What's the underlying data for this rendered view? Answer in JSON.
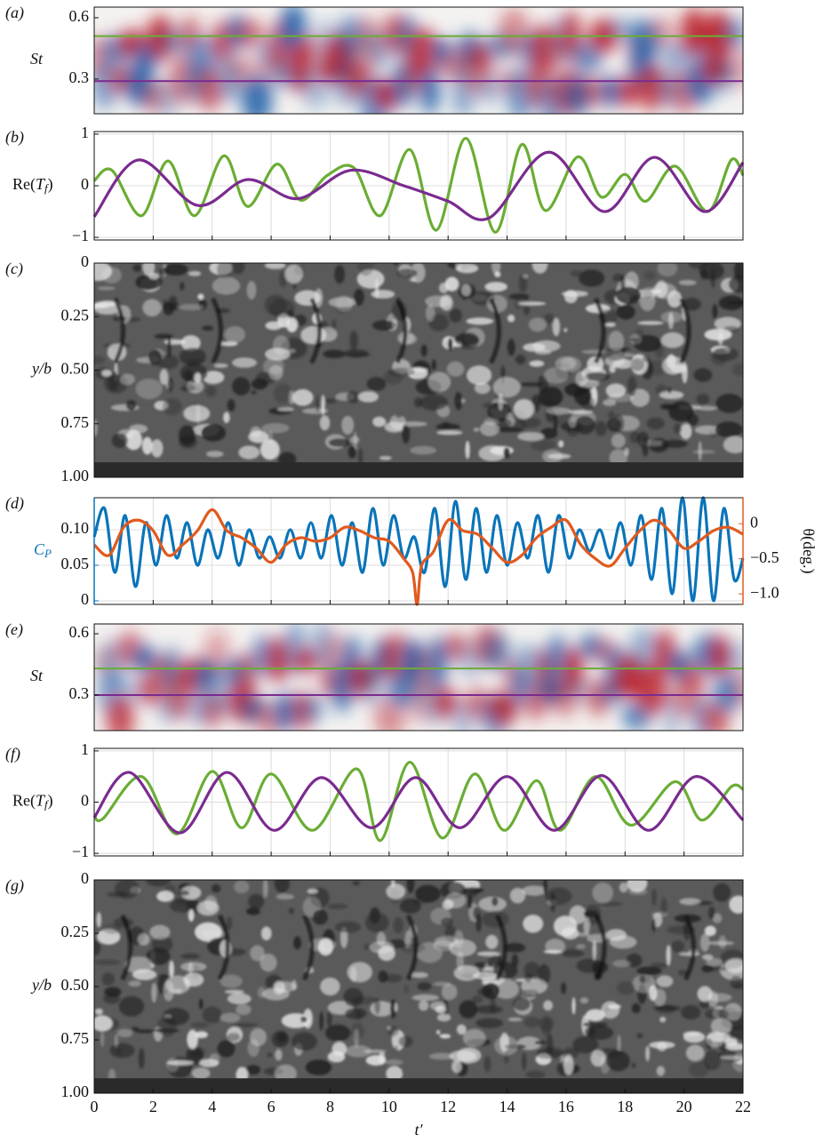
{
  "chart_data": [
    {
      "type": "heatmap",
      "label": "(a)",
      "ylabel": "St",
      "ylim": [
        0.13,
        0.652
      ],
      "yticks": [
        0.3,
        0.6
      ],
      "lines": [
        {
          "value": 0.51,
          "color": "#6aad34"
        },
        {
          "value": 0.29,
          "color": "#7a2b8f"
        }
      ]
    },
    {
      "type": "line",
      "label": "(b)",
      "ylabel": [
        "Re(",
        "T",
        "f",
        ")"
      ],
      "xlim": [
        0,
        22
      ],
      "xticks": [
        0,
        2,
        4,
        6,
        8,
        10,
        12,
        14,
        16,
        18,
        20,
        22
      ],
      "ylim": [
        -1.05,
        1.05
      ],
      "yticks": [
        {
          "value": -1,
          "label": "−1"
        },
        0,
        1
      ],
      "grid": true,
      "series": [
        {
          "color": "#6aad34",
          "x": [
            0,
            0.6,
            1.6,
            2.5,
            3.4,
            4.4,
            5.2,
            6.2,
            7.0,
            7.9,
            8.8,
            9.7,
            10.7,
            11.6,
            12.6,
            13.6,
            14.5,
            15.3,
            16.4,
            17.2,
            18.0,
            18.7,
            19.7,
            20.8,
            21.6,
            22
          ],
          "values": [
            0.1,
            0.3,
            -0.58,
            0.48,
            -0.58,
            0.58,
            -0.4,
            0.42,
            -0.28,
            0.2,
            0.35,
            -0.58,
            0.7,
            -0.86,
            0.92,
            -0.9,
            0.8,
            -0.48,
            0.56,
            -0.22,
            0.22,
            -0.3,
            0.38,
            -0.5,
            0.5,
            0.2
          ]
        },
        {
          "color": "#7a2b8f",
          "x": [
            0,
            1.5,
            3.5,
            5.2,
            6.9,
            8.7,
            10.5,
            12,
            13.4,
            15.4,
            17.3,
            19.0,
            20.7,
            22
          ],
          "values": [
            -0.6,
            0.5,
            -0.38,
            0.12,
            -0.25,
            0.3,
            0.0,
            -0.3,
            -0.62,
            0.65,
            -0.5,
            0.55,
            -0.5,
            0.45
          ]
        }
      ]
    },
    {
      "type": "image",
      "label": "(c)",
      "ylabel": "y/b",
      "ylim": [
        0,
        1
      ],
      "y_inverted": true,
      "yticks": [
        0,
        {
          "value": 0.25,
          "label": "0.25"
        },
        {
          "value": 0.5,
          "label": "0.50"
        },
        {
          "value": 0.75,
          "label": "0.75"
        },
        {
          "value": 1,
          "label": "1.00"
        }
      ]
    },
    {
      "type": "line",
      "label": "(d)",
      "ylabel": [
        "C",
        "P"
      ],
      "y2label": "θ(deg.)",
      "xlim": [
        0,
        22
      ],
      "xticks": [
        0,
        2,
        4,
        6,
        8,
        10,
        12,
        14,
        16,
        18,
        20,
        22
      ],
      "ylim": [
        -0.005,
        0.145
      ],
      "yticks": [
        0,
        0.05,
        {
          "value": 0.1,
          "label": "0.10"
        }
      ],
      "y2lim": [
        -1.15,
        0.37
      ],
      "y2ticks": [
        {
          "value": -1,
          "label": "−1.0"
        },
        {
          "value": -0.5,
          "label": "−0.5"
        },
        0
      ],
      "grid": true,
      "y_color": "#0a74b9",
      "y2_color": "#e05a1e",
      "series": [
        {
          "color": "#0a74b9",
          "x": [
            0,
            0.35,
            0.7,
            1.05,
            1.4,
            1.75,
            2.1,
            2.45,
            2.8,
            3.15,
            3.5,
            3.85,
            4.2,
            4.55,
            4.9,
            5.25,
            5.6,
            5.95,
            6.3,
            6.65,
            7,
            7.35,
            7.7,
            8.05,
            8.4,
            8.75,
            9.1,
            9.45,
            9.8,
            10.15,
            10.5,
            10.85,
            11.2,
            11.55,
            11.9,
            12.25,
            12.6,
            12.95,
            13.3,
            13.65,
            14,
            14.35,
            14.7,
            15.05,
            15.4,
            15.75,
            16.1,
            16.45,
            16.8,
            17.15,
            17.5,
            17.85,
            18.2,
            18.55,
            18.9,
            19.25,
            19.6,
            19.95,
            20.3,
            20.65,
            21,
            21.35,
            21.7,
            22
          ],
          "values": [
            0.09,
            0.13,
            0.04,
            0.12,
            0.02,
            0.11,
            0.05,
            0.12,
            0.06,
            0.11,
            0.05,
            0.1,
            0.06,
            0.11,
            0.05,
            0.1,
            0.06,
            0.09,
            0.06,
            0.1,
            0.06,
            0.11,
            0.06,
            0.12,
            0.05,
            0.11,
            0.04,
            0.13,
            0.05,
            0.12,
            0.06,
            0.09,
            0.04,
            0.13,
            0.02,
            0.14,
            0.03,
            0.13,
            0.04,
            0.12,
            0.05,
            0.11,
            0.06,
            0.12,
            0.04,
            0.12,
            0.06,
            0.1,
            0.07,
            0.1,
            0.06,
            0.11,
            0.05,
            0.12,
            0.03,
            0.13,
            0.01,
            0.145,
            0,
            0.145,
            0,
            0.13,
            0.03,
            0.06
          ]
        },
        {
          "color": "#e05a1e",
          "axis": "y2",
          "x": [
            0,
            0.5,
            1,
            1.5,
            2,
            2.5,
            3,
            3.5,
            4,
            4.5,
            5,
            5.5,
            6,
            6.5,
            7,
            7.5,
            8,
            8.5,
            9,
            9.5,
            10,
            10.5,
            10.8,
            10.95,
            11.1,
            11.5,
            12,
            12.5,
            13,
            13.5,
            14,
            14.5,
            15,
            15.5,
            16,
            16.5,
            17,
            17.5,
            18,
            18.5,
            19,
            19.5,
            20,
            20.5,
            21,
            21.5,
            22
          ],
          "values": [
            -0.3,
            -0.45,
            -0.05,
            0.05,
            -0.1,
            -0.45,
            -0.3,
            -0.1,
            0.2,
            -0.1,
            -0.2,
            -0.35,
            -0.55,
            -0.3,
            -0.2,
            -0.25,
            -0.2,
            -0.05,
            -0.1,
            -0.2,
            -0.25,
            -0.5,
            -0.7,
            -1.15,
            -0.6,
            -0.4,
            0.05,
            -0.1,
            -0.15,
            -0.35,
            -0.55,
            -0.45,
            -0.2,
            -0.05,
            0.05,
            -0.3,
            -0.5,
            -0.6,
            -0.35,
            -0.1,
            0.05,
            -0.1,
            -0.35,
            -0.25,
            -0.1,
            -0.05,
            -0.15
          ]
        }
      ]
    },
    {
      "type": "heatmap",
      "label": "(e)",
      "ylabel": "St",
      "ylim": [
        0.126,
        0.648
      ],
      "yticks": [
        0.3,
        0.6
      ],
      "lines": [
        {
          "value": 0.43,
          "color": "#6aad34"
        },
        {
          "value": 0.3,
          "color": "#7a2b8f"
        }
      ]
    },
    {
      "type": "line",
      "label": "(f)",
      "ylabel": [
        "Re(",
        "T",
        "f",
        ")"
      ],
      "xlim": [
        0,
        22
      ],
      "xticks": [
        0,
        2,
        4,
        6,
        8,
        10,
        12,
        14,
        16,
        18,
        20,
        22
      ],
      "ylim": [
        -1.05,
        1.05
      ],
      "yticks": [
        {
          "value": -1,
          "label": "−1"
        },
        0,
        1
      ],
      "grid": true,
      "series": [
        {
          "color": "#6aad34",
          "x": [
            0,
            0.3,
            1.6,
            2.8,
            4.0,
            5.0,
            6.0,
            7.4,
            8.9,
            9.7,
            10.7,
            11.8,
            12.9,
            13.9,
            15.0,
            15.8,
            17.0,
            18.2,
            19.7,
            20.6,
            21.6,
            22
          ],
          "values": [
            -0.25,
            -0.32,
            0.5,
            -0.62,
            0.6,
            -0.5,
            0.55,
            -0.55,
            0.65,
            -0.75,
            0.78,
            -0.7,
            0.55,
            -0.55,
            0.42,
            -0.55,
            0.5,
            -0.45,
            0.4,
            -0.35,
            0.3,
            0.25
          ]
        },
        {
          "color": "#7a2b8f",
          "x": [
            0,
            1.2,
            2.9,
            4.5,
            6.1,
            7.7,
            9.4,
            10.9,
            12.4,
            14.0,
            15.6,
            17.2,
            18.8,
            20.4,
            22
          ],
          "values": [
            -0.3,
            0.58,
            -0.6,
            0.58,
            -0.55,
            0.48,
            -0.5,
            0.48,
            -0.5,
            0.5,
            -0.55,
            0.52,
            -0.55,
            0.5,
            -0.35
          ]
        }
      ]
    },
    {
      "type": "image",
      "label": "(g)",
      "ylabel": "y/b",
      "ylim": [
        0,
        1
      ],
      "y_inverted": true,
      "yticks": [
        0,
        {
          "value": 0.25,
          "label": "0.25"
        },
        {
          "value": 0.5,
          "label": "0.50"
        },
        {
          "value": 0.75,
          "label": "0.75"
        },
        {
          "value": 1,
          "label": "1.00"
        }
      ],
      "xlim": [
        0,
        22
      ],
      "xticks": [
        0,
        2,
        4,
        6,
        8,
        10,
        12,
        14,
        16,
        18,
        20,
        22
      ],
      "xtick_labels": true,
      "xlabel": "t′"
    }
  ]
}
